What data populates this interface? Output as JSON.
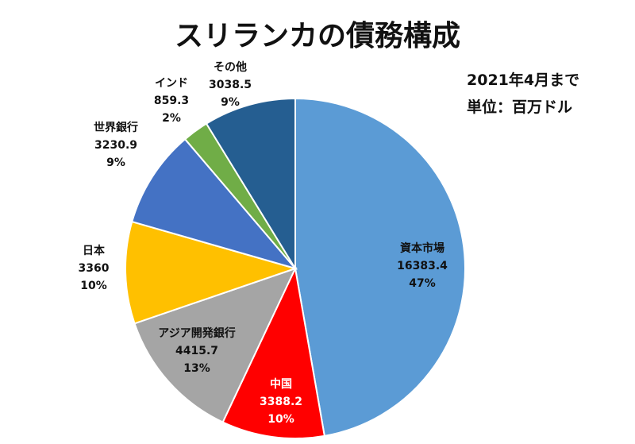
{
  "title": "スリランカの債務構成",
  "notes": {
    "period": "2021年4月まで",
    "unit": "単位：百万ドル"
  },
  "chart_data": {
    "type": "pie",
    "title": "スリランカの債務構成",
    "start_angle_deg": 0,
    "direction": "clockwise",
    "slices": [
      {
        "label": "資本市場",
        "value": 16383.4,
        "value_text": "16383.4",
        "percent": "47%",
        "color": "#5b9bd5"
      },
      {
        "label": "中国",
        "value": 3388.2,
        "value_text": "3388.2",
        "percent": "10%",
        "color": "#ff0000"
      },
      {
        "label": "アジア開発銀行",
        "value": 4415.7,
        "value_text": "4415.7",
        "percent": "13%",
        "color": "#a5a5a5"
      },
      {
        "label": "日本",
        "value": 3360,
        "value_text": "3360",
        "percent": "10%",
        "color": "#ffc000"
      },
      {
        "label": "世界銀行",
        "value": 3230.9,
        "value_text": "3230.9",
        "percent": "9%",
        "color": "#4472c4"
      },
      {
        "label": "インド",
        "value": 859.3,
        "value_text": "859.3",
        "percent": "2%",
        "color": "#70ad47"
      },
      {
        "label": "その他",
        "value": 3038.5,
        "value_text": "3038.5",
        "percent": "9%",
        "color": "#255e91"
      }
    ]
  }
}
